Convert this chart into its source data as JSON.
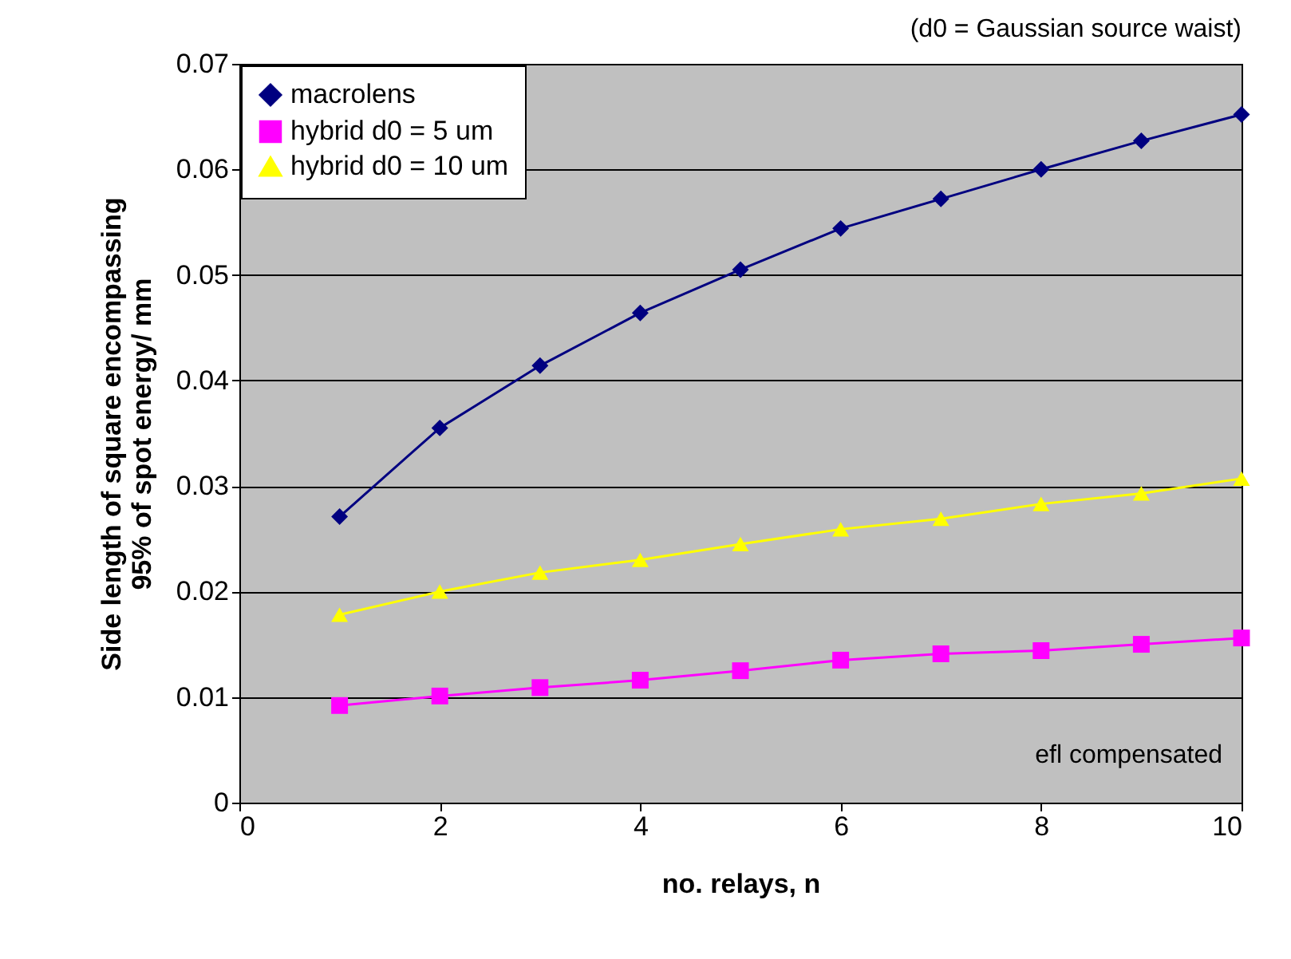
{
  "chart_data": {
    "type": "line",
    "xlabel": "no. relays, n",
    "ylabel": "Side length of square encompassing\n95% of spot energy/ mm",
    "x": [
      1,
      2,
      3,
      4,
      5,
      6,
      7,
      8,
      9,
      10
    ],
    "series": [
      {
        "name": "macrolens",
        "color": "#000080",
        "marker": "diamond",
        "values": [
          0.0271,
          0.0355,
          0.0414,
          0.0464,
          0.0505,
          0.0544,
          0.0572,
          0.06,
          0.0627,
          0.0652
        ]
      },
      {
        "name": "hybrid d0 = 5 um",
        "color": "#ff00ff",
        "marker": "square",
        "values": [
          0.0092,
          0.0101,
          0.0109,
          0.0116,
          0.0125,
          0.0135,
          0.0141,
          0.0144,
          0.015,
          0.0156
        ]
      },
      {
        "name": "hybrid d0 = 10 um",
        "color": "#ffff00",
        "marker": "triangle",
        "values": [
          0.0178,
          0.02,
          0.0218,
          0.023,
          0.0245,
          0.0259,
          0.0269,
          0.0283,
          0.0293,
          0.0307
        ]
      }
    ],
    "xlim": [
      0,
      10
    ],
    "xticks": [
      0,
      2,
      4,
      6,
      8,
      10
    ],
    "ylim": [
      0,
      0.07
    ],
    "yticks": [
      0,
      0.01,
      0.02,
      0.03,
      0.04,
      0.05,
      0.06,
      0.07
    ],
    "grid": "y",
    "legend": "top left",
    "line_style": "solid",
    "annotations": [
      "(d0 = Gaussian source waist)",
      "efl compensated"
    ]
  }
}
